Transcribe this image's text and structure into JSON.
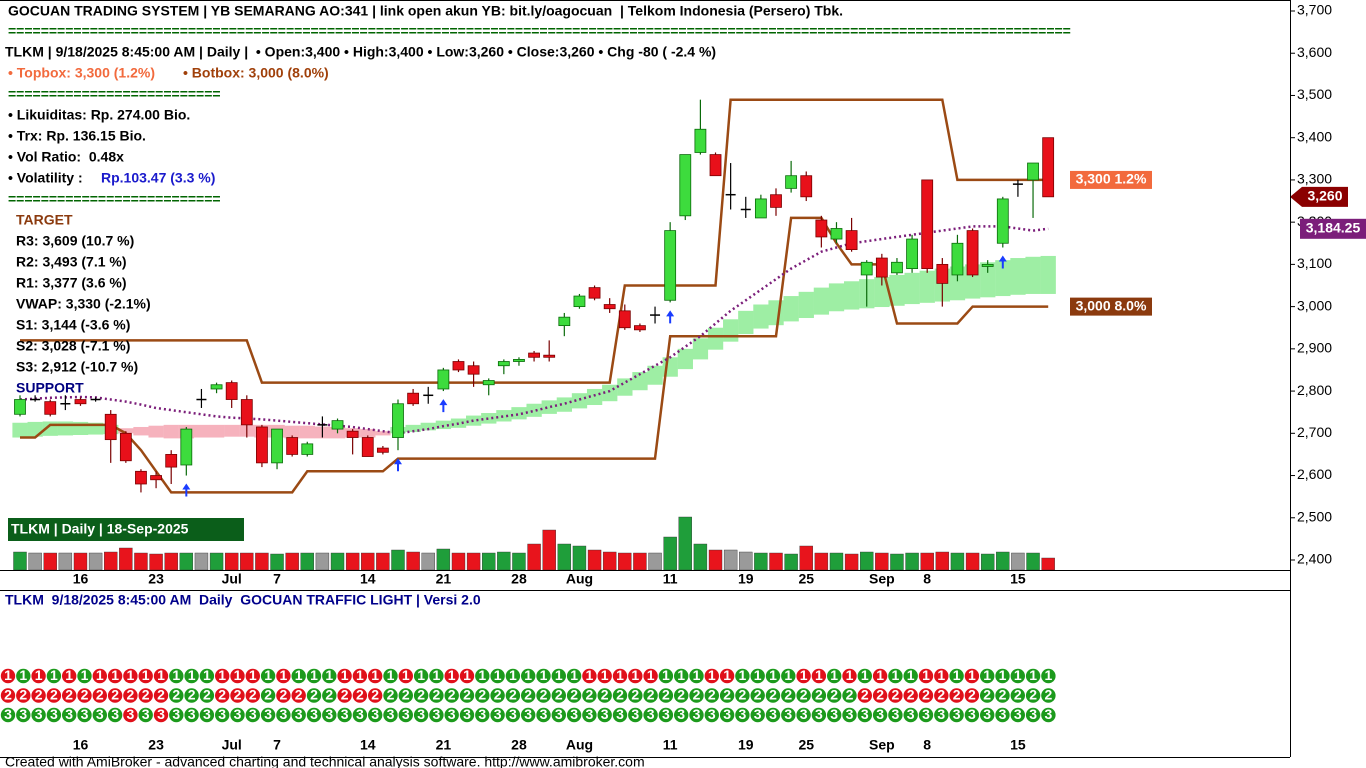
{
  "header": {
    "line1": "GOCUAN TRADING SYSTEM | YB SEMARANG AO:341 | link open akun YB: bit.ly/oagocuan  | Telkom Indonesia (Persero) Tbk.",
    "separator": "==================================================================================================================================",
    "line2": "TLKM | 9/18/2025 8:45:00 AM | Daily |  • Open:3,400 • High:3,400 • Low:3,260 • Close:3,260 • Chg -80 ( -2.4 %)",
    "topbox": "• Topbox: 3,300 (1.2%)",
    "botbox": "• Botbox: 3,000 (8.0%)"
  },
  "info": {
    "separator": "==========================",
    "likuiditas": "• Likuiditas: Rp. 274.00 Bio.",
    "trx": "• Trx: Rp. 136.15 Bio.",
    "vol_ratio": "• Vol Ratio:  0.48x",
    "volatility_label": "• Volatility :",
    "volatility_value": "Rp.103.47 (3.3 %)",
    "target": "TARGET",
    "levels": [
      "R3: 3,609 (10.7 %)",
      "R2: 3,493 (7.1 %)",
      "R1: 3,377 (3.6 %)",
      "VWAP: 3,330 (-2.1%)",
      "S1: 3,144 (-3.6 %)",
      "S2: 3,028 (-7.1 %)",
      "S3: 2,912 (-10.7 %)"
    ],
    "support": "SUPPORT",
    "badge": "TLKM | Daily | 18-Sep-2025"
  },
  "chart_data": {
    "type": "candlestick",
    "ylim": [
      2400,
      3700
    ],
    "yticks": [
      {
        "value": 2400,
        "label": "2,400"
      },
      {
        "value": 2500,
        "label": "2,500"
      },
      {
        "value": 2600,
        "label": "2,600"
      },
      {
        "value": 2700,
        "label": "2,700"
      },
      {
        "value": 2800,
        "label": "2,800"
      },
      {
        "value": 2900,
        "label": "2,900"
      },
      {
        "value": 3000,
        "label": "3,000"
      },
      {
        "value": 3100,
        "label": "3,100"
      },
      {
        "value": 3200,
        "label": "3,200"
      },
      {
        "value": 3300,
        "label": "3,300"
      },
      {
        "value": 3400,
        "label": "3,400"
      },
      {
        "value": 3500,
        "label": "3,500"
      },
      {
        "value": 3600,
        "label": "3,600"
      },
      {
        "value": 3700,
        "label": "3,700"
      }
    ],
    "categories": [
      null,
      null,
      null,
      null,
      "16",
      null,
      null,
      null,
      null,
      "23",
      null,
      null,
      null,
      null,
      "Jul",
      null,
      null,
      "7",
      null,
      null,
      null,
      null,
      null,
      "14",
      null,
      null,
      null,
      null,
      "21",
      null,
      null,
      null,
      null,
      "28",
      null,
      null,
      null,
      "Aug",
      null,
      null,
      null,
      null,
      null,
      "11",
      null,
      null,
      null,
      null,
      "19",
      null,
      null,
      null,
      "25",
      null,
      null,
      null,
      null,
      "Sep",
      null,
      null,
      "8",
      null,
      null,
      null,
      null,
      null,
      "15",
      null,
      null
    ],
    "candle_colors": {
      "up": "#3ddc3d",
      "down": "#e8101a",
      "flat": "#000000"
    },
    "candles": {
      "open": [
        2745,
        2780,
        2775,
        2770,
        2780,
        2780,
        2745,
        2700,
        2610,
        2600,
        2650,
        2625,
        2780,
        2805,
        2820,
        2780,
        2715,
        2630,
        2690,
        2650,
        2720,
        2710,
        2705,
        2690,
        2665,
        2690,
        2795,
        2790,
        2805,
        2870,
        2860,
        2815,
        2860,
        2870,
        2890,
        2885,
        2955,
        3000,
        3045,
        3005,
        2990,
        2955,
        2980,
        3015,
        3215,
        3365,
        3360,
        3265,
        3230,
        3210,
        3265,
        3280,
        3310,
        3205,
        3160,
        3180,
        3075,
        3115,
        3080,
        3090,
        3300,
        3100,
        3075,
        3180,
        3095,
        3150,
        3290,
        3300,
        3400
      ],
      "high": [
        2790,
        2790,
        2780,
        2790,
        2785,
        2785,
        2755,
        2705,
        2615,
        2610,
        2660,
        2715,
        2805,
        2820,
        2825,
        2790,
        2720,
        2710,
        2695,
        2680,
        2740,
        2735,
        2710,
        2695,
        2670,
        2780,
        2805,
        2810,
        2855,
        2875,
        2870,
        2830,
        2875,
        2880,
        2895,
        2920,
        2985,
        3030,
        3050,
        3020,
        3005,
        2960,
        3000,
        3200,
        3360,
        3490,
        3365,
        3340,
        3260,
        3265,
        3280,
        3345,
        3320,
        3215,
        3200,
        3210,
        3110,
        3125,
        3115,
        3170,
        3300,
        3115,
        3170,
        3185,
        3110,
        3260,
        3300,
        3340,
        3400
      ],
      "low": [
        2740,
        2775,
        2740,
        2755,
        2765,
        2775,
        2630,
        2630,
        2560,
        2570,
        2580,
        2600,
        2760,
        2795,
        2760,
        2690,
        2620,
        2615,
        2645,
        2645,
        2690,
        2700,
        2650,
        2645,
        2650,
        2660,
        2765,
        2770,
        2800,
        2845,
        2810,
        2790,
        2840,
        2860,
        2870,
        2870,
        2930,
        2995,
        3015,
        2985,
        2945,
        2940,
        2960,
        3010,
        3205,
        3360,
        3310,
        3230,
        3210,
        3210,
        3215,
        3270,
        3250,
        3140,
        3150,
        3130,
        3000,
        3050,
        3075,
        3080,
        3080,
        3000,
        3060,
        3070,
        3080,
        3140,
        3260,
        3210,
        3260
      ],
      "close": [
        2780,
        2780,
        2745,
        2770,
        2770,
        2780,
        2685,
        2635,
        2580,
        2590,
        2620,
        2710,
        2780,
        2815,
        2780,
        2720,
        2630,
        2710,
        2650,
        2675,
        2720,
        2730,
        2690,
        2645,
        2655,
        2770,
        2770,
        2790,
        2850,
        2850,
        2840,
        2825,
        2870,
        2875,
        2880,
        2880,
        2975,
        3025,
        3020,
        2995,
        2950,
        2945,
        2980,
        3180,
        3360,
        3420,
        3310,
        3265,
        3230,
        3255,
        3235,
        3310,
        3260,
        3165,
        3185,
        3135,
        3105,
        3070,
        3105,
        3160,
        3090,
        3055,
        3150,
        3075,
        3100,
        3255,
        3290,
        3340,
        3260
      ]
    },
    "ribbon": {
      "color_up": "#9eeea4",
      "color_down": "#f6b2bd",
      "fast": [
        2725,
        2727,
        2728,
        2728,
        2727,
        2725,
        2720,
        2700,
        2695,
        2690,
        2688,
        2688,
        2690,
        2690,
        2692,
        2692,
        2690,
        2690,
        2688,
        2688,
        2688,
        2688,
        2690,
        2690,
        2695,
        2715,
        2720,
        2725,
        2730,
        2735,
        2742,
        2748,
        2755,
        2762,
        2770,
        2778,
        2785,
        2795,
        2805,
        2815,
        2830,
        2845,
        2860,
        2880,
        2900,
        2925,
        2950,
        2970,
        2990,
        3005,
        3015,
        3025,
        3035,
        3045,
        3055,
        3060,
        3065,
        3070,
        3075,
        3080,
        3085,
        3090,
        3095,
        3100,
        3105,
        3110,
        3115,
        3118,
        3120
      ],
      "slow": [
        2690,
        2692,
        2694,
        2695,
        2696,
        2697,
        2698,
        2712,
        2715,
        2718,
        2720,
        2720,
        2720,
        2720,
        2720,
        2720,
        2720,
        2720,
        2718,
        2718,
        2716,
        2715,
        2712,
        2710,
        2705,
        2700,
        2703,
        2707,
        2710,
        2713,
        2718,
        2723,
        2728,
        2733,
        2739,
        2746,
        2751,
        2759,
        2767,
        2776,
        2789,
        2802,
        2815,
        2834,
        2852,
        2875,
        2898,
        2917,
        2935,
        2948,
        2956,
        2965,
        2973,
        2981,
        2989,
        2993,
        2996,
        2999,
        3002,
        3006,
        3009,
        3012,
        3015,
        3019,
        3022,
        3025,
        3028,
        3030,
        3030
      ]
    },
    "upper_box": {
      "color": "#9b4a14",
      "values": [
        2920,
        2920,
        2920,
        2920,
        2920,
        2920,
        2920,
        2920,
        2920,
        2920,
        2920,
        2920,
        2920,
        2920,
        2920,
        2920,
        2820,
        2820,
        2820,
        2820,
        2820,
        2820,
        2820,
        2820,
        2820,
        2820,
        2820,
        2820,
        2820,
        2820,
        2820,
        2820,
        2820,
        2820,
        2820,
        2820,
        2820,
        2820,
        2820,
        2820,
        3050,
        3050,
        3050,
        3050,
        3050,
        3050,
        3050,
        3490,
        3490,
        3490,
        3490,
        3490,
        3490,
        3490,
        3490,
        3490,
        3490,
        3490,
        3490,
        3490,
        3490,
        3490,
        3300,
        3300,
        3300,
        3300,
        3300,
        3300,
        3300
      ]
    },
    "lower_box": {
      "color": "#9b4a14",
      "values": [
        2690,
        2690,
        2720,
        2720,
        2720,
        2720,
        2720,
        2700,
        2660,
        2610,
        2560,
        2560,
        2560,
        2560,
        2560,
        2560,
        2560,
        2560,
        2560,
        2610,
        2610,
        2610,
        2610,
        2610,
        2610,
        2640,
        2640,
        2640,
        2640,
        2640,
        2640,
        2640,
        2640,
        2640,
        2640,
        2640,
        2640,
        2640,
        2640,
        2640,
        2640,
        2640,
        2640,
        2930,
        2930,
        2930,
        2930,
        2930,
        2930,
        2930,
        2930,
        3210,
        3210,
        3210,
        3150,
        3100,
        3100,
        3100,
        2960,
        2960,
        2960,
        2960,
        2960,
        3000,
        3000,
        3000,
        3000,
        3000,
        3000
      ]
    },
    "trend_line": {
      "color": "#7b1e7a",
      "values": [
        2780,
        2782,
        2784,
        2785,
        2786,
        2785,
        2780,
        2775,
        2768,
        2760,
        2755,
        2750,
        2745,
        2740,
        2737,
        2735,
        2733,
        2730,
        2727,
        2724,
        2721,
        2718,
        2715,
        2710,
        2705,
        2700,
        2705,
        2710,
        2717,
        2723,
        2730,
        2735,
        2740,
        2745,
        2753,
        2762,
        2770,
        2780,
        2790,
        2800,
        2820,
        2840,
        2860,
        2880,
        2905,
        2930,
        2960,
        2990,
        3015,
        3040,
        3065,
        3090,
        3110,
        3130,
        3140,
        3150,
        3155,
        3160,
        3165,
        3170,
        3175,
        3180,
        3185,
        3190,
        3190,
        3190,
        3185,
        3180,
        3184.25
      ]
    },
    "buy_signals": [
      11,
      25,
      28,
      43,
      65
    ],
    "signal_color": "#1a3cff",
    "volume_colors": {
      "up": "#1f9e3a",
      "down": "#e8141c",
      "flat": "#9a9a9a"
    },
    "volume": [
      18,
      17,
      17,
      17,
      17,
      17,
      18,
      22,
      17,
      16,
      17,
      17,
      17,
      17,
      17,
      17,
      17,
      16,
      17,
      17,
      17,
      17,
      17,
      17,
      17,
      20,
      18,
      17,
      21,
      17,
      17,
      17,
      18,
      17,
      26,
      40,
      26,
      24,
      20,
      18,
      17,
      17,
      17,
      33,
      53,
      26,
      20,
      20,
      18,
      17,
      17,
      16,
      24,
      17,
      17,
      16,
      18,
      17,
      16,
      17,
      17,
      18,
      17,
      17,
      16,
      18,
      17,
      17,
      12
    ],
    "price_tags": [
      {
        "label": "3,300 1.2%",
        "value": 3300,
        "color": "#f26a3d",
        "anchor": "plot"
      },
      {
        "label": "3,000 8.0%",
        "value": 3000,
        "color": "#8b3a0e",
        "anchor": "plot"
      },
      {
        "label": "3,260",
        "value": 3260,
        "color": "#8b0000",
        "anchor": "axis-arrow"
      },
      {
        "label": "3,184.25",
        "value": 3184.25,
        "color": "#7b1e7a",
        "anchor": "axis"
      }
    ]
  },
  "traffic_light": {
    "title": "TLKM  9/18/2025 8:45:00 AM  Daily  GOCUAN TRAFFIC LIGHT | Versi 2.0",
    "colors": [
      "#e0101a",
      "#1c9a1c"
    ],
    "rows": [
      {
        "label": "1",
        "states": [
          0,
          1,
          0,
          1,
          0,
          1,
          0,
          0,
          0,
          0,
          0,
          1,
          1,
          1,
          0,
          0,
          0,
          1,
          0,
          1,
          1,
          1,
          0,
          0,
          0,
          1,
          0,
          1,
          1,
          0,
          0,
          1,
          1,
          1,
          1,
          1,
          1,
          1,
          0,
          0,
          0,
          0,
          0,
          1,
          1,
          1,
          0,
          0,
          1,
          1,
          1,
          1,
          0,
          0,
          1,
          0,
          1,
          0,
          1,
          1,
          0,
          0,
          1,
          0,
          1,
          1,
          1,
          1,
          1
        ]
      },
      {
        "label": "2",
        "states": [
          0,
          0,
          0,
          0,
          0,
          0,
          0,
          0,
          0,
          0,
          0,
          1,
          1,
          1,
          0,
          0,
          0,
          1,
          0,
          0,
          1,
          1,
          0,
          0,
          0,
          1,
          1,
          1,
          1,
          1,
          1,
          1,
          1,
          1,
          1,
          1,
          1,
          1,
          1,
          1,
          1,
          1,
          1,
          1,
          1,
          1,
          1,
          1,
          1,
          1,
          1,
          1,
          1,
          1,
          1,
          1,
          0,
          0,
          0,
          0,
          0,
          0,
          0,
          0,
          1,
          1,
          1,
          1,
          1
        ]
      },
      {
        "label": "3",
        "states": [
          1,
          1,
          1,
          1,
          1,
          1,
          1,
          1,
          0,
          1,
          0,
          1,
          1,
          1,
          1,
          1,
          1,
          1,
          1,
          1,
          1,
          1,
          1,
          1,
          1,
          1,
          1,
          1,
          1,
          1,
          1,
          1,
          1,
          1,
          1,
          1,
          1,
          1,
          1,
          1,
          1,
          1,
          1,
          1,
          1,
          1,
          1,
          1,
          1,
          1,
          1,
          1,
          1,
          1,
          1,
          1,
          1,
          1,
          1,
          1,
          1,
          1,
          1,
          1,
          1,
          1,
          1,
          1,
          1
        ]
      }
    ]
  },
  "footer": "Created with AmiBroker - advanced charting and technical analysis software. http://www.amibroker.com"
}
